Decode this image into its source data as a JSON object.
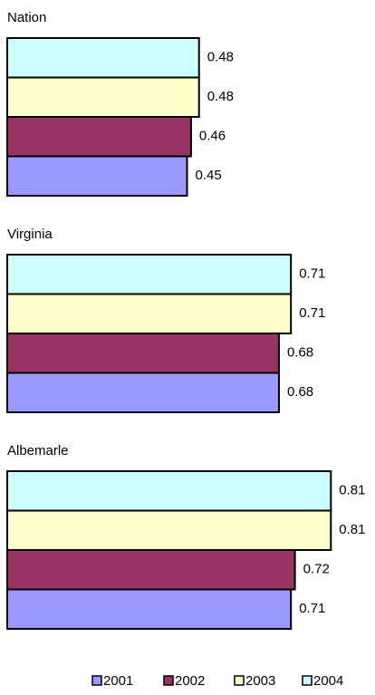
{
  "chart_data": {
    "type": "bar",
    "orientation": "horizontal",
    "categories": [
      "Nation",
      "Virginia",
      "Albemarle"
    ],
    "series": [
      {
        "name": "2001",
        "color": "#9999ff",
        "values": [
          0.45,
          0.68,
          0.71
        ]
      },
      {
        "name": "2002",
        "color": "#993366",
        "values": [
          0.46,
          0.68,
          0.72
        ]
      },
      {
        "name": "2003",
        "color": "#ffffcc",
        "values": [
          0.48,
          0.71,
          0.81
        ]
      },
      {
        "name": "2004",
        "color": "#ccffff",
        "values": [
          0.48,
          0.71,
          0.81
        ]
      }
    ],
    "xlim": [
      0,
      0.9
    ]
  }
}
